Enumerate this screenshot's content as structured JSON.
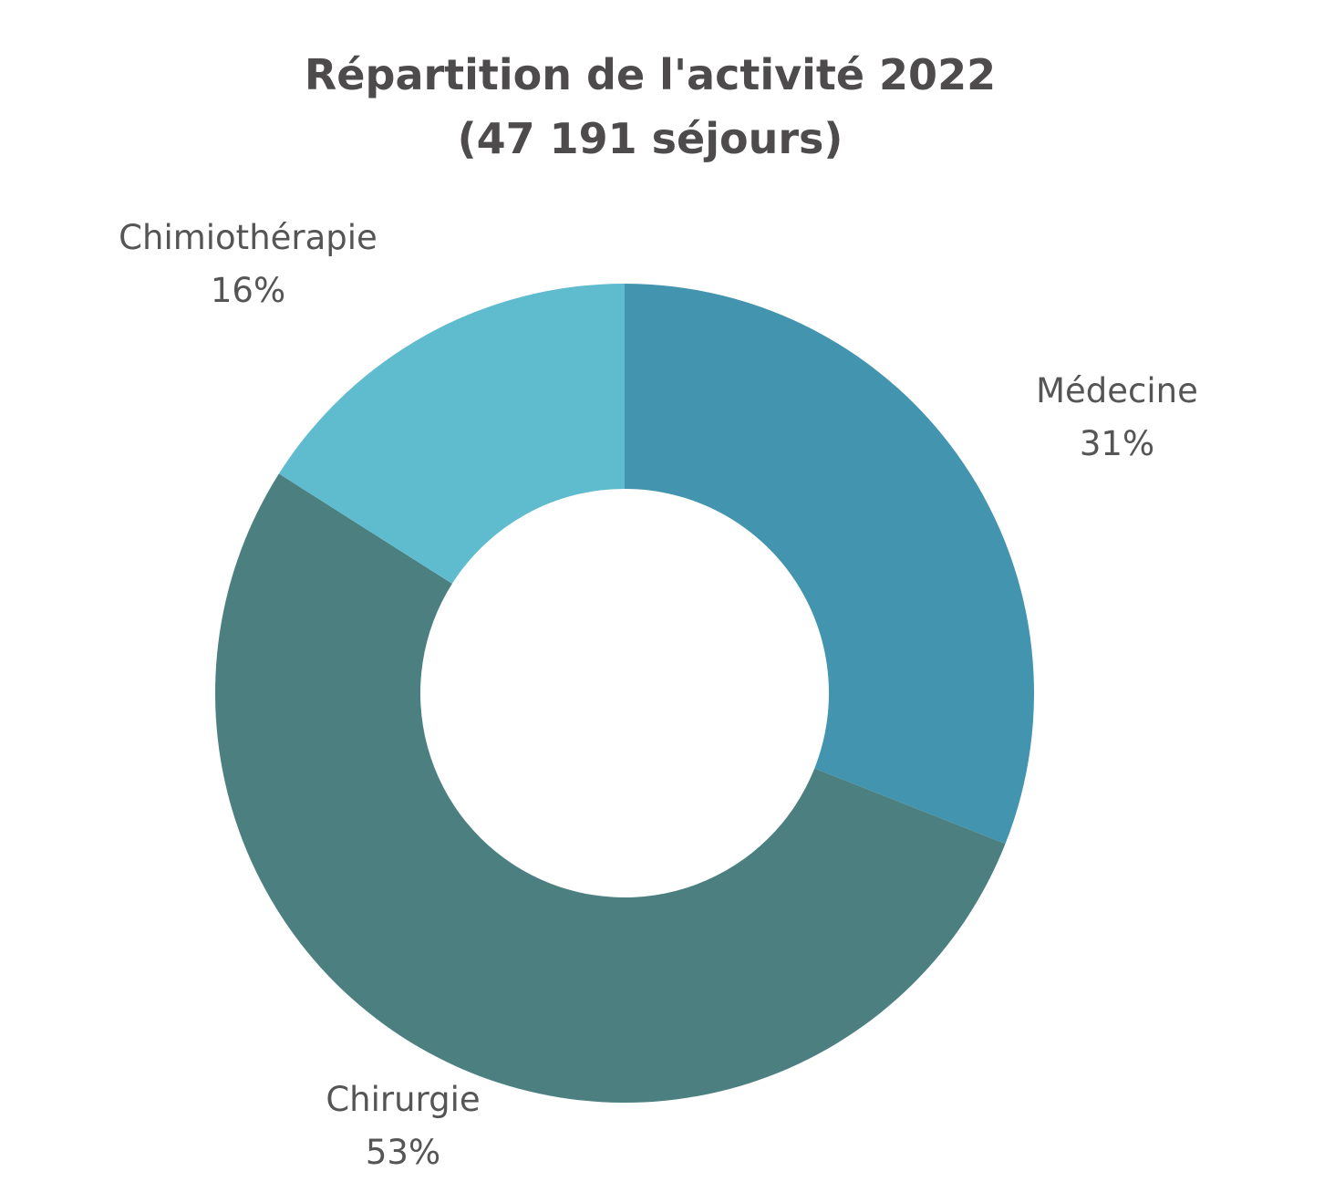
{
  "chart_data": {
    "type": "donut",
    "title": "Répartition de l'activité 2022",
    "subtitle": "(47 191 séjours)",
    "start_angle_deg": 0,
    "direction": "clockwise",
    "slices": [
      {
        "name": "Médecine",
        "value": 31,
        "label": "31%",
        "color": "#4294af"
      },
      {
        "name": "Chirurgie",
        "value": 53,
        "label": "53%",
        "color": "#4c8080"
      },
      {
        "name": "Chimiothérapie",
        "value": 16,
        "label": "16%",
        "color": "#5fbccf"
      }
    ]
  }
}
